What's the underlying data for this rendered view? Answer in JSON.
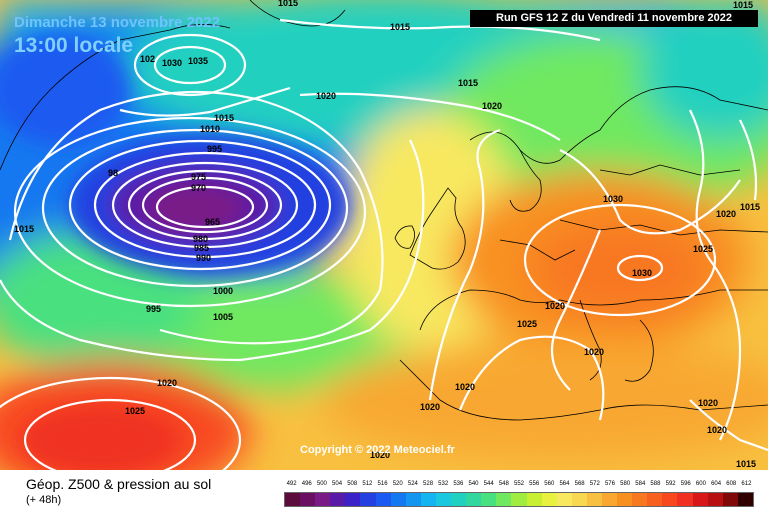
{
  "header": {
    "date_line": "Dimanche 13 novembre 2022",
    "time_line": "13:00 locale",
    "run_info": "Run GFS 12 Z du Vendredi 11 novembre 2022"
  },
  "map": {
    "copyright": "Copyright © 2022 Meteociel.fr",
    "isobar_labels": [
      "1015",
      "1015",
      "1015",
      "1030",
      "1035",
      "102",
      "1020",
      "1015",
      "1020",
      "1015",
      "1010",
      "995",
      "975",
      "970",
      "965",
      "980",
      "985",
      "990",
      "98",
      "1015",
      "1000",
      "1005",
      "995",
      "1030",
      "1020",
      "1015",
      "1025",
      "1030",
      "1020",
      "1025",
      "1020",
      "1020",
      "1020",
      "1020",
      "1025",
      "1020",
      "1020",
      "1020",
      "1015"
    ],
    "coastline_color": "#000000",
    "isobar_color": "#ffffff",
    "low_center_color": "#7a1a86",
    "high_center_color": "#ff3a2a"
  },
  "legend": {
    "title": "Géop. Z500 & pression au sol",
    "lead_time": "(+ 48h)",
    "scale": [
      "492",
      "496",
      "500",
      "504",
      "508",
      "512",
      "516",
      "520",
      "524",
      "528",
      "532",
      "536",
      "540",
      "544",
      "548",
      "552",
      "556",
      "560",
      "564",
      "568",
      "572",
      "576",
      "580",
      "584",
      "588",
      "592",
      "596",
      "600",
      "604",
      "608",
      "612"
    ],
    "colors": [
      "#5c0c3c",
      "#6a0f62",
      "#7a1a86",
      "#5a1aa8",
      "#3a22c8",
      "#2440e0",
      "#1a5af0",
      "#1478f0",
      "#1496f0",
      "#14b4f0",
      "#18c8e0",
      "#20d0c0",
      "#30d8a0",
      "#48e080",
      "#70e860",
      "#a0ec40",
      "#c8f030",
      "#e8f040",
      "#f8e860",
      "#f8d850",
      "#f8c040",
      "#f8a830",
      "#f89020",
      "#f87820",
      "#f86020",
      "#f84820",
      "#f03020",
      "#d81818",
      "#b81010",
      "#800808",
      "#300000"
    ]
  }
}
